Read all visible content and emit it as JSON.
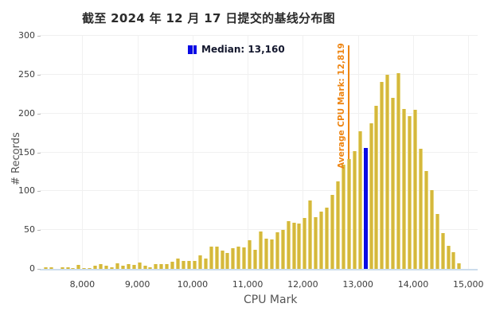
{
  "title": "截至 2024 年 12 月 17 日提交的基线分布图",
  "legend": {
    "median_label": "Median: 13,160",
    "swatch_color": "#0a0ae4"
  },
  "average_line": {
    "label": "Average CPU Mark: 12,819",
    "value": 12819,
    "color": "#ee8512"
  },
  "x_axis": {
    "label": "CPU Mark",
    "ticks": [
      {
        "value": 8000,
        "label": "8,000"
      },
      {
        "value": 9000,
        "label": "9,000"
      },
      {
        "value": 10000,
        "label": "10,000"
      },
      {
        "value": 11000,
        "label": "11,000"
      },
      {
        "value": 12000,
        "label": "12,000"
      },
      {
        "value": 13000,
        "label": "13,000"
      },
      {
        "value": 14000,
        "label": "14,000"
      },
      {
        "value": 15000,
        "label": "15,000"
      }
    ]
  },
  "y_axis": {
    "label": "# Records",
    "ticks": [
      0,
      50,
      100,
      150,
      200,
      250,
      300
    ]
  },
  "chart_data": {
    "type": "bar",
    "title": "截至 2024 年 12 月 17 日提交的基线分布图",
    "xlabel": "CPU Mark",
    "ylabel": "# Records",
    "xlim": [
      7230,
      15170
    ],
    "ylim": [
      0,
      300
    ],
    "grid": true,
    "bin_width": 100,
    "bins": [
      7300,
      7400,
      7500,
      7600,
      7700,
      7800,
      7900,
      8000,
      8100,
      8200,
      8300,
      8400,
      8500,
      8600,
      8700,
      8800,
      8900,
      9000,
      9100,
      9200,
      9300,
      9400,
      9500,
      9600,
      9700,
      9800,
      9900,
      10000,
      10100,
      10200,
      10300,
      10400,
      10500,
      10600,
      10700,
      10800,
      10900,
      11000,
      11100,
      11200,
      11300,
      11400,
      11500,
      11600,
      11700,
      11800,
      11900,
      12000,
      12100,
      12200,
      12300,
      12400,
      12500,
      12600,
      12700,
      12800,
      12900,
      13000,
      13100,
      13200,
      13300,
      13400,
      13500,
      13600,
      13700,
      13800,
      13900,
      14000,
      14100,
      14200,
      14300,
      14400,
      14500,
      14600,
      14700,
      14800
    ],
    "values": [
      2,
      2,
      0,
      2,
      2,
      1,
      5,
      1,
      1,
      4,
      6,
      4,
      2,
      7,
      4,
      6,
      5,
      8,
      4,
      2,
      6,
      6,
      6,
      9,
      13,
      10,
      10,
      10,
      17,
      13,
      29,
      29,
      24,
      21,
      27,
      29,
      28,
      37,
      25,
      48,
      39,
      38,
      47,
      50,
      61,
      59,
      58,
      66,
      88,
      67,
      74,
      79,
      95,
      113,
      134,
      141,
      152,
      177,
      156,
      187,
      210,
      241,
      250,
      220,
      252,
      206,
      197,
      205,
      155,
      126,
      101,
      71,
      46,
      30,
      22,
      7
    ],
    "median": {
      "value": 13160,
      "bin": 13100
    },
    "average": 12819,
    "legend_position": "top-center",
    "colors": {
      "bar": "#d5b83c",
      "bar_edge": "#e6d67c",
      "median_bar": "#0a0ae4",
      "average_line": "#ee8512"
    }
  }
}
